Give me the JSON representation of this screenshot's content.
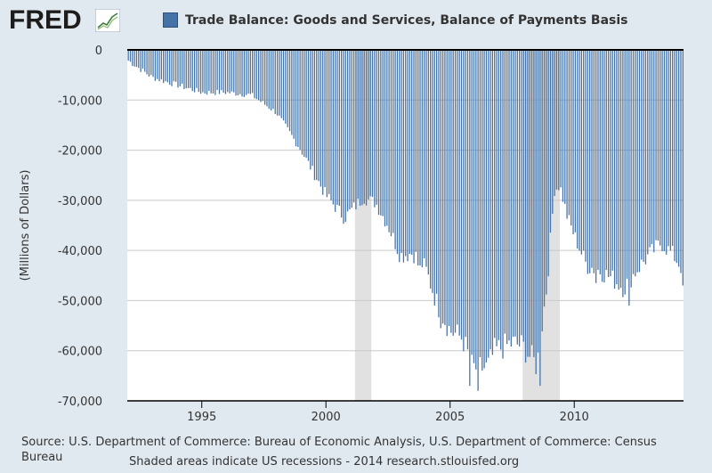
{
  "brand": {
    "name": "FRED",
    "icon": "chart-line-icon"
  },
  "chart_data": {
    "type": "bar",
    "title": "Trade Balance: Goods and Services, Balance of Payments Basis",
    "ylabel": "(Millions of Dollars)",
    "xlabel": "",
    "legend": [
      "Trade Balance: Goods and Services, Balance of Payments Basis"
    ],
    "legend_position": "top",
    "frequency": "monthly",
    "xlim": [
      1992.0,
      2014.4
    ],
    "ylim": [
      -70000,
      0
    ],
    "y_ticks": [
      0,
      -10000,
      -20000,
      -30000,
      -40000,
      -50000,
      -60000,
      -70000
    ],
    "y_tick_labels": [
      "0",
      "-10,000",
      "-20,000",
      "-30,000",
      "-40,000",
      "-50,000",
      "-60,000",
      "-70,000"
    ],
    "x_ticks": [
      1995,
      2000,
      2005,
      2010
    ],
    "x_tick_labels": [
      "1995",
      "2000",
      "2005",
      "2010"
    ],
    "series_color": "#4572a7",
    "recession_color": "#e1e1e1",
    "recessions": [
      [
        2001.17,
        2001.83
      ],
      [
        2007.92,
        2009.42
      ]
    ],
    "anchors": [
      [
        1992.0,
        -2000
      ],
      [
        1993.0,
        -5500
      ],
      [
        1994.0,
        -7000
      ],
      [
        1995.0,
        -8500
      ],
      [
        1996.0,
        -8500
      ],
      [
        1997.0,
        -9000
      ],
      [
        1998.0,
        -12500
      ],
      [
        1999.0,
        -20000
      ],
      [
        2000.0,
        -29000
      ],
      [
        2000.75,
        -33500
      ],
      [
        2001.5,
        -29500
      ],
      [
        2002.0,
        -30500
      ],
      [
        2002.5,
        -35000
      ],
      [
        2003.0,
        -41000
      ],
      [
        2003.5,
        -40500
      ],
      [
        2004.0,
        -43500
      ],
      [
        2004.5,
        -51000
      ],
      [
        2005.0,
        -56000
      ],
      [
        2005.5,
        -57500
      ],
      [
        2005.9,
        -63500
      ],
      [
        2006.5,
        -63500
      ],
      [
        2006.8,
        -60000
      ],
      [
        2007.5,
        -58500
      ],
      [
        2007.9,
        -59000
      ],
      [
        2008.5,
        -63000
      ],
      [
        2008.9,
        -47000
      ],
      [
        2009.2,
        -28000
      ],
      [
        2009.42,
        -27000
      ],
      [
        2009.7,
        -33000
      ],
      [
        2010.0,
        -37000
      ],
      [
        2010.5,
        -43000
      ],
      [
        2011.0,
        -44000
      ],
      [
        2011.5,
        -45500
      ],
      [
        2012.0,
        -47500
      ],
      [
        2012.5,
        -44000
      ],
      [
        2013.0,
        -41000
      ],
      [
        2013.5,
        -38500
      ],
      [
        2014.0,
        -41000
      ],
      [
        2014.4,
        -44000
      ]
    ],
    "extremes": [
      [
        2003.75,
        -43000
      ],
      [
        2004.65,
        -55500
      ],
      [
        2005.8,
        -67000
      ],
      [
        2006.1,
        -68000
      ],
      [
        2008.6,
        -67000
      ],
      [
        2010.9,
        -46500
      ],
      [
        2012.2,
        -51000
      ],
      [
        2014.35,
        -47000
      ]
    ]
  },
  "source": {
    "text": "Source: U.S. Department of Commerce: Bureau of Economic Analysis, U.S. Department of Commerce: Census Bureau"
  },
  "footer": {
    "text": "Shaded areas indicate US recessions - 2014 research.stlouisfed.org"
  }
}
